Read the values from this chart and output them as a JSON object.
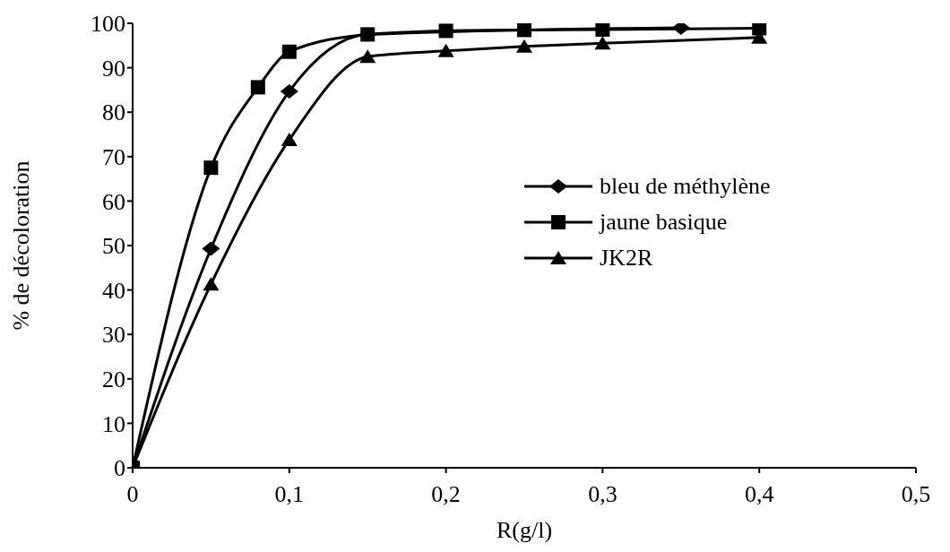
{
  "chart_data": {
    "type": "line",
    "xlabel": "R(g/l)",
    "ylabel": "% de décoloration",
    "xlim": [
      0,
      0.5
    ],
    "xticks": [
      {
        "value": 0,
        "label": "0"
      },
      {
        "value": 0.1,
        "label": "0,1"
      },
      {
        "value": 0.2,
        "label": "0,2"
      },
      {
        "value": 0.3,
        "label": "0,3"
      },
      {
        "value": 0.4,
        "label": "0,4"
      },
      {
        "value": 0.5,
        "label": "0,5"
      }
    ],
    "ylim": [
      0,
      100
    ],
    "yticks": [
      0,
      10,
      20,
      30,
      40,
      50,
      60,
      70,
      80,
      90,
      100
    ],
    "grid": false,
    "legend": "right",
    "series": [
      {
        "name": "bleu de méthylène",
        "color": "#000000",
        "marker": "diamond",
        "x": [
          0,
          0.05,
          0.1,
          0.15,
          0.2,
          0.25,
          0.3,
          0.35
        ],
        "values": [
          0,
          49.3,
          84.7,
          97.5,
          null,
          null,
          null,
          99
        ]
      },
      {
        "name": "jaune basique",
        "color": "#000000",
        "marker": "square",
        "x": [
          0,
          0.05,
          0.08,
          0.1,
          0.15,
          0.2,
          0.25,
          0.3,
          0.4
        ],
        "values": [
          0,
          67.5,
          85.6,
          93.6,
          97.5,
          98.3,
          98.5,
          98.6,
          98.9
        ]
      },
      {
        "name": "JK2R",
        "color": "#000000",
        "marker": "triangle",
        "x": [
          0,
          0.05,
          0.1,
          0.15,
          0.2,
          0.25,
          0.3,
          0.4
        ],
        "values": [
          0,
          41.3,
          73.8,
          92.5,
          93.8,
          94.8,
          95.5,
          96.8
        ]
      }
    ]
  }
}
